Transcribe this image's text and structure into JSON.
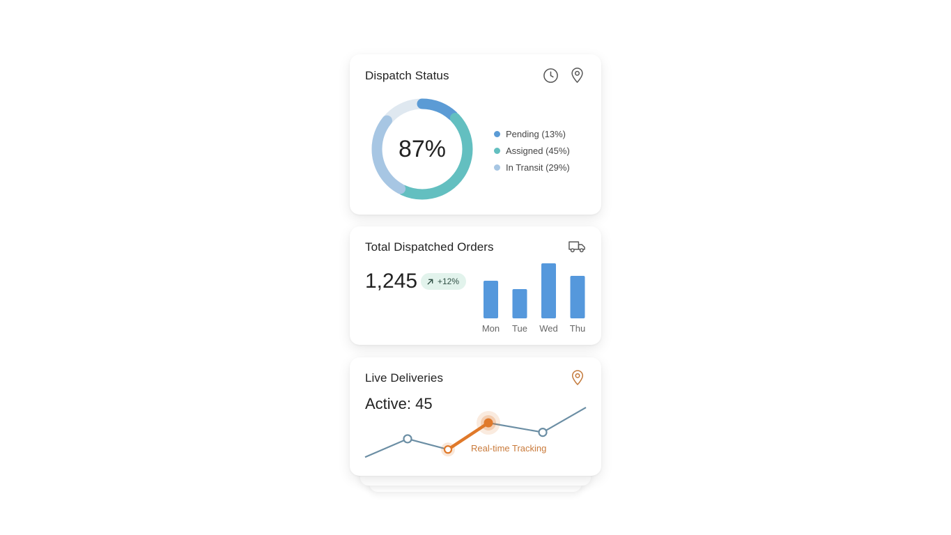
{
  "dispatch_status": {
    "title": "Dispatch Status",
    "center_value": "87%",
    "icons": [
      "clock-icon",
      "map-pin-icon"
    ],
    "legend": [
      {
        "label": "Pending (13%)",
        "color": "#5b9bd5",
        "value": 13
      },
      {
        "label": "Assigned (45%)",
        "color": "#63bfc0",
        "value": 45
      },
      {
        "label": "In Transit (29%)",
        "color": "#a7c6e3",
        "value": 29
      }
    ],
    "remainder_color": "#dfe8f0"
  },
  "total_orders": {
    "title": "Total Dispatched Orders",
    "value": "1,245",
    "trend": "+12%",
    "icon": "truck-icon",
    "bar_color": "#5598dc",
    "chart_data": {
      "type": "bar",
      "categories": [
        "Mon",
        "Tue",
        "Wed",
        "Thu"
      ],
      "values": [
        54,
        42,
        79,
        61
      ],
      "ylim": [
        0,
        80
      ]
    }
  },
  "live_deliveries": {
    "title": "Live Deliveries",
    "active_label": "Active: 45",
    "tracking_label": "Real-time Tracking",
    "icon": "map-pin-icon",
    "line_color": "#6b8ea4",
    "highlight_color": "#e0792a",
    "chart_data": {
      "type": "line",
      "values": [
        2,
        33,
        15,
        60,
        44,
        86
      ]
    }
  }
}
